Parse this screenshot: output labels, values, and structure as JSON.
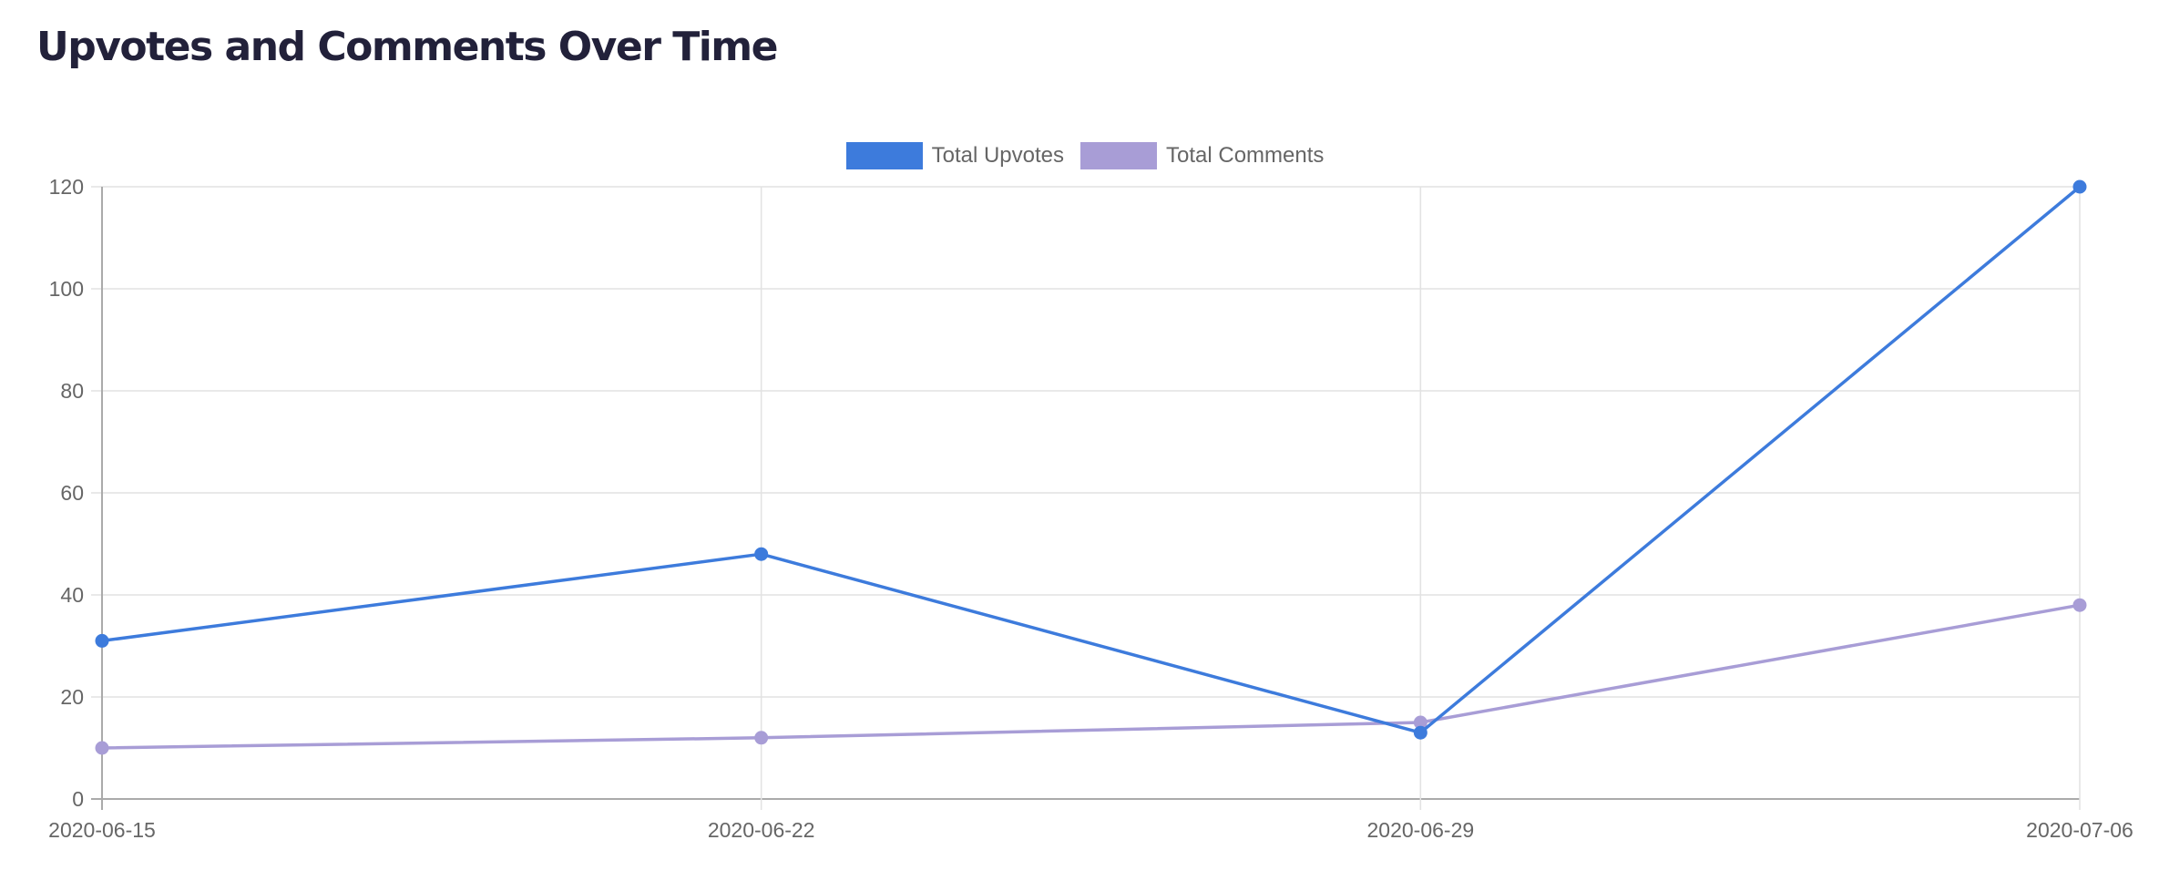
{
  "title": "Upvotes and Comments Over Time",
  "legend": [
    {
      "label": "Total Upvotes",
      "color": "#3d7bdc"
    },
    {
      "label": "Total Comments",
      "color": "#a89dd6"
    }
  ],
  "chart_data": {
    "type": "line",
    "title": "Upvotes and Comments Over Time",
    "xlabel": "",
    "ylabel": "",
    "categories": [
      "2020-06-15",
      "2020-06-22",
      "2020-06-29",
      "2020-07-06"
    ],
    "series": [
      {
        "name": "Total Upvotes",
        "color": "#3d7bdc",
        "values": [
          31,
          48,
          13,
          120
        ]
      },
      {
        "name": "Total Comments",
        "color": "#a89dd6",
        "values": [
          10,
          12,
          15,
          38
        ]
      }
    ],
    "ylim": [
      0,
      120
    ],
    "yticks": [
      0,
      20,
      40,
      60,
      80,
      100,
      120
    ],
    "grid": true,
    "legend_position": "top"
  }
}
